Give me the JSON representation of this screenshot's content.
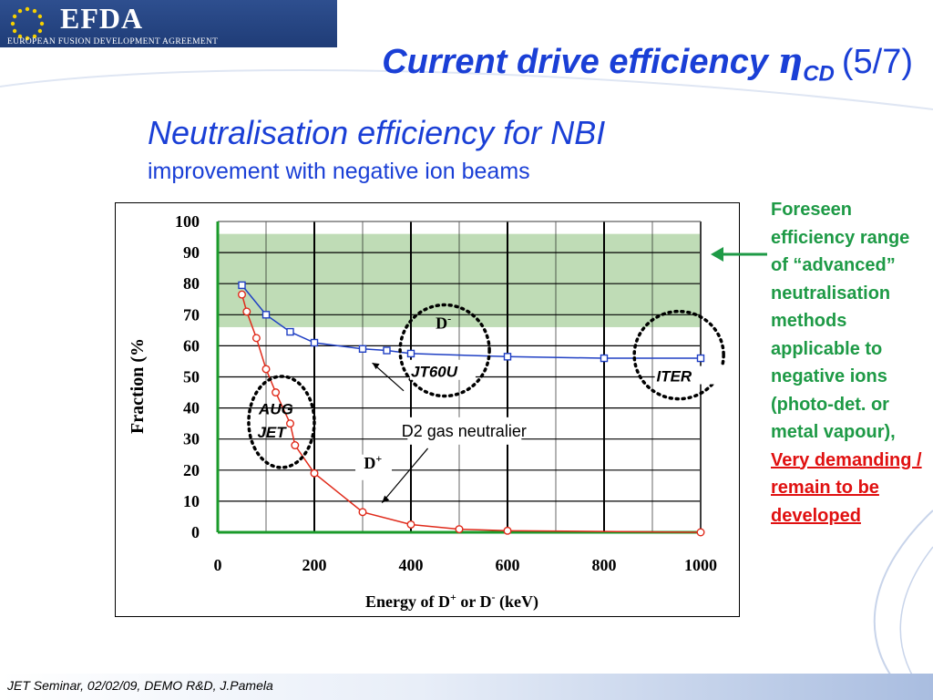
{
  "header": {
    "logo_text": "EFDA",
    "logo_subtitle": "EUROPEAN FUSION DEVELOPMENT AGREEMENT"
  },
  "slide": {
    "title_main": "Current drive efficiency ",
    "title_symbol": "η",
    "title_subscript": "CD",
    "title_counter": "(5/7)",
    "heading": "Neutralisation efficiency for NBI",
    "subheading": "improvement with negative ion beams"
  },
  "side_note": {
    "text": "Foreseen efficiency range of “advanced” neutralisation methods applicable to negative ions (photo-det. or metal vapour),",
    "warning": "Very demanding / remain to be developed"
  },
  "footer": {
    "text": "JET Seminar, 02/02/09, DEMO R&D, J.Pamela"
  },
  "colors": {
    "title_blue": "#1a3fd6",
    "note_green": "#1e9a46",
    "warning_red": "#e01010",
    "band_green": "#bfdcb6",
    "series_blue": "#1f3fc4",
    "series_red": "#e02a1a"
  },
  "chart_data": {
    "type": "line",
    "xlabel": "Energy of D+ or D- (keV)",
    "xlabel_parts": {
      "prefix": "Energy of D",
      "sup1": "+",
      "mid": " or D",
      "sup2": "-",
      "suffix": " (keV)"
    },
    "ylabel": "Fraction (%",
    "xlim": [
      0,
      1000
    ],
    "ylim": [
      0,
      100
    ],
    "x_ticks": [
      "0",
      "200",
      "400",
      "600",
      "800",
      "1000"
    ],
    "y_ticks": [
      "0",
      "10",
      "20",
      "30",
      "40",
      "50",
      "60",
      "70",
      "80",
      "90",
      "100"
    ],
    "grid": true,
    "band": {
      "y_from": 66,
      "y_to": 96
    },
    "series": [
      {
        "name": "D-",
        "label_base": "D",
        "label_sup": "-",
        "marker": "square",
        "x": [
          50,
          100,
          150,
          200,
          300,
          350,
          400,
          600,
          800,
          1000
        ],
        "y": [
          79.5,
          70,
          64.5,
          61,
          59,
          58.5,
          57.5,
          56.5,
          56,
          56
        ]
      },
      {
        "name": "D+",
        "label_base": "D",
        "label_sup": "+",
        "marker": "circle",
        "x": [
          50,
          60,
          80,
          100,
          120,
          150,
          160,
          200,
          300,
          400,
          500,
          600,
          1000
        ],
        "y": [
          76.5,
          71,
          62.5,
          52.5,
          45,
          35,
          28,
          19,
          6.5,
          2.5,
          1,
          0.5,
          0
        ]
      }
    ],
    "annotations": [
      {
        "text": "JT60U"
      },
      {
        "text": "ITER"
      },
      {
        "text": "AUG"
      },
      {
        "text": "JET"
      },
      {
        "text": "D2 gas neutralier"
      }
    ]
  }
}
